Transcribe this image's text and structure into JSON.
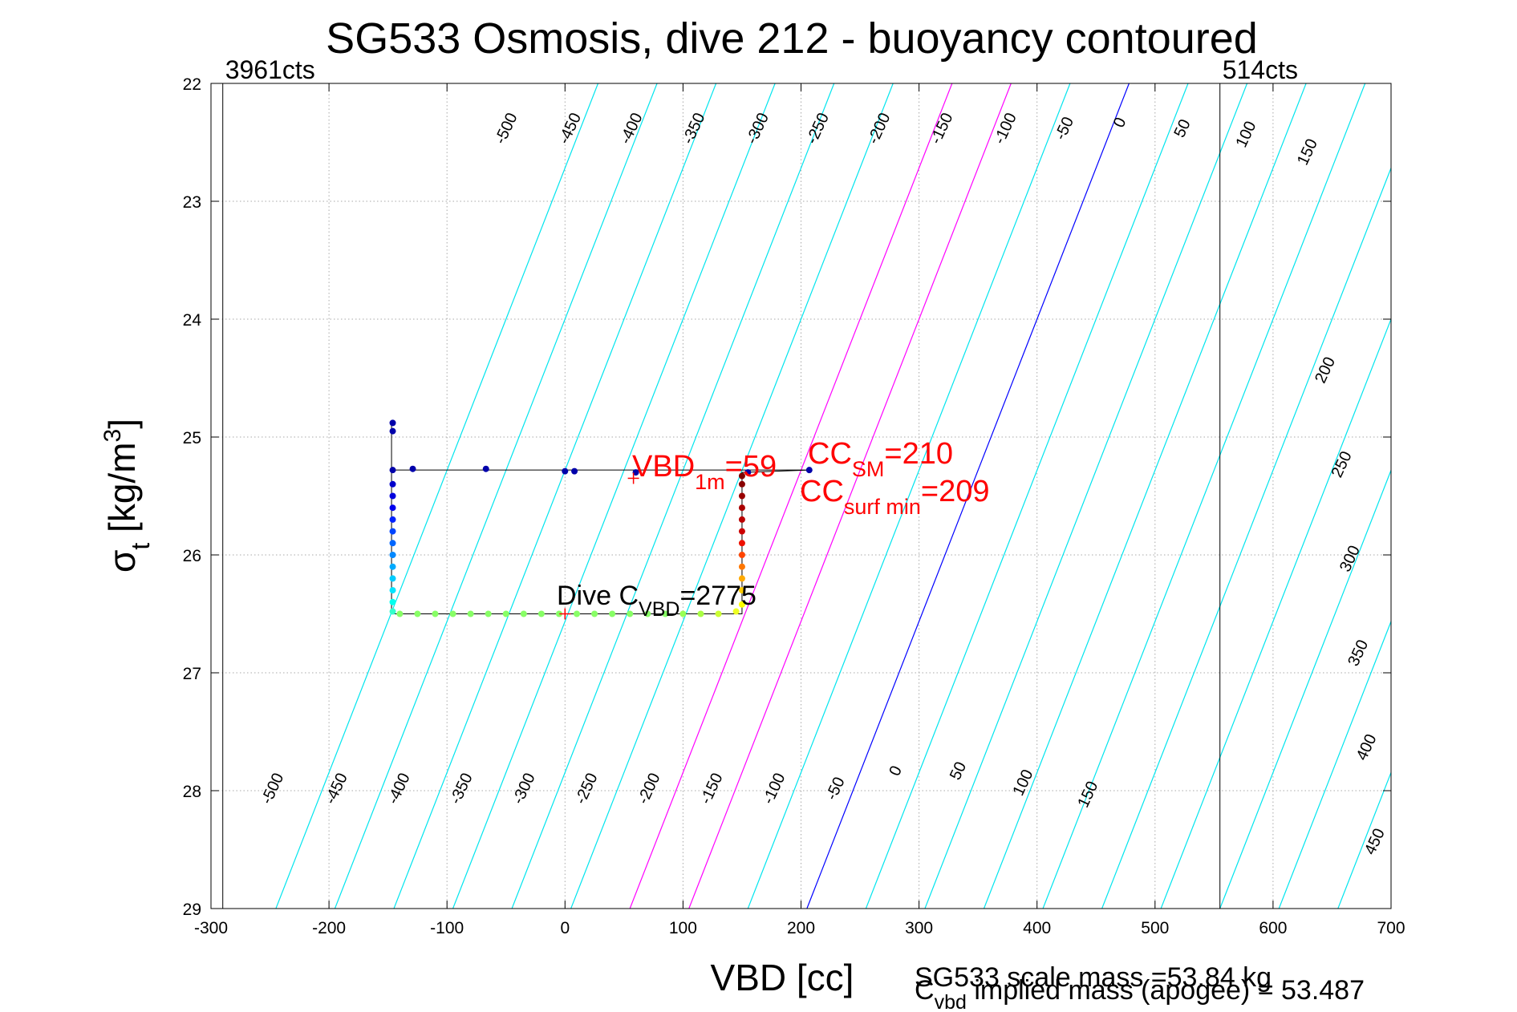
{
  "chart_data": {
    "type": "line",
    "title": "SG533 Osmosis, dive 212 - buoyancy contoured",
    "xlabel": "VBD [cc]",
    "ylabel": {
      "main": "σ",
      "sub": "t",
      "units_pre": " [kg/m",
      "units_sup": "3",
      "units_post": "]"
    },
    "xlim": [
      -300,
      700
    ],
    "ylim": [
      22,
      29
    ],
    "y_reversed": true,
    "x_ticks": [
      -300,
      -200,
      -100,
      0,
      100,
      200,
      300,
      400,
      500,
      600,
      700
    ],
    "y_ticks": [
      22,
      23,
      24,
      25,
      26,
      27,
      28,
      29
    ],
    "x_tick_labels": [
      "-300",
      "-200",
      "-100",
      "0",
      "100",
      "200",
      "300",
      "400",
      "500",
      "600",
      "700"
    ],
    "y_tick_labels": [
      "22",
      "23",
      "24",
      "25",
      "26",
      "27",
      "28",
      "29"
    ],
    "grid": true,
    "vbd_limits": [
      {
        "x": -290,
        "label": "3961cts"
      },
      {
        "x": 555,
        "label": "514cts"
      }
    ],
    "contour_colors": {
      "default": "#00e5ee",
      "zero": "#0000ff",
      "highlight": "#ff00ff"
    },
    "contour_levels": [
      -500,
      -450,
      -400,
      -350,
      -300,
      -250,
      -200,
      -150,
      -100,
      -50,
      0,
      50,
      100,
      150,
      200,
      250,
      300,
      350,
      400,
      450
    ],
    "contour_labels_top": [
      {
        "text": "-500",
        "x": -46,
        "y": 22.4
      },
      {
        "text": "-450",
        "x": 8,
        "y": 22.4
      },
      {
        "text": "-400",
        "x": 60,
        "y": 22.4
      },
      {
        "text": "-350",
        "x": 113,
        "y": 22.4
      },
      {
        "text": "-300",
        "x": 167,
        "y": 22.4
      },
      {
        "text": "-250",
        "x": 218,
        "y": 22.4
      },
      {
        "text": "-200",
        "x": 270,
        "y": 22.4
      },
      {
        "text": "-150",
        "x": 323,
        "y": 22.4
      },
      {
        "text": "-100",
        "x": 377,
        "y": 22.4
      },
      {
        "text": "-50",
        "x": 427,
        "y": 22.4
      },
      {
        "text": "0",
        "x": 474,
        "y": 22.35
      },
      {
        "text": "50",
        "x": 527,
        "y": 22.4
      },
      {
        "text": "100",
        "x": 581,
        "y": 22.45
      },
      {
        "text": "150",
        "x": 633,
        "y": 22.6
      },
      {
        "text": "200",
        "x": 648,
        "y": 24.45
      },
      {
        "text": "250",
        "x": 662,
        "y": 25.25
      },
      {
        "text": "300",
        "x": 669,
        "y": 26.05
      },
      {
        "text": "350",
        "x": 676,
        "y": 26.85
      },
      {
        "text": "400",
        "x": 683,
        "y": 27.65
      },
      {
        "text": "450",
        "x": 690,
        "y": 28.45
      }
    ],
    "contour_labels_bottom": [
      {
        "text": "-500",
        "x": -244,
        "y": 28.0
      },
      {
        "text": "-450",
        "x": -190,
        "y": 28.0
      },
      {
        "text": "-400",
        "x": -137,
        "y": 28.0
      },
      {
        "text": "-350",
        "x": -84,
        "y": 28.0
      },
      {
        "text": "-300",
        "x": -31,
        "y": 28.0
      },
      {
        "text": "-250",
        "x": 22,
        "y": 28.0
      },
      {
        "text": "-200",
        "x": 75,
        "y": 28.0
      },
      {
        "text": "-150",
        "x": 128,
        "y": 28.0
      },
      {
        "text": "-100",
        "x": 181,
        "y": 28.0
      },
      {
        "text": "-50",
        "x": 233,
        "y": 28.0
      },
      {
        "text": "0",
        "x": 284,
        "y": 27.85
      },
      {
        "text": "50",
        "x": 337,
        "y": 27.85
      },
      {
        "text": "100",
        "x": 392,
        "y": 27.95
      },
      {
        "text": "150",
        "x": 447,
        "y": 28.05
      }
    ],
    "series": [
      {
        "kind": "dive_path",
        "color": "#000000",
        "x": [
          -147,
          -147,
          -147,
          -147,
          0,
          150,
          150,
          150,
          208,
          -145,
          -147
        ],
        "y": [
          24.9,
          26.5,
          26.5,
          26.5,
          26.5,
          26.5,
          26.3,
          25.3,
          25.28,
          25.28,
          25.28
        ]
      },
      {
        "kind": "points",
        "points": [
          {
            "x": -146,
            "y": 24.88,
            "c": "#0000aa"
          },
          {
            "x": -146,
            "y": 24.95,
            "c": "#0000aa"
          },
          {
            "x": -146,
            "y": 25.28,
            "c": "#0000aa"
          },
          {
            "x": -129,
            "y": 25.27,
            "c": "#0000aa"
          },
          {
            "x": -67,
            "y": 25.27,
            "c": "#0000aa"
          },
          {
            "x": 0,
            "y": 25.29,
            "c": "#0000aa"
          },
          {
            "x": 8,
            "y": 25.29,
            "c": "#0000aa"
          },
          {
            "x": 60,
            "y": 25.3,
            "c": "#0000aa"
          },
          {
            "x": 155,
            "y": 25.3,
            "c": "#0000aa"
          },
          {
            "x": 207,
            "y": 25.28,
            "c": "#0000aa"
          },
          {
            "x": -146,
            "y": 25.4,
            "c": "#0000cc"
          },
          {
            "x": -146,
            "y": 25.5,
            "c": "#0000dd"
          },
          {
            "x": -146,
            "y": 25.6,
            "c": "#0000ee"
          },
          {
            "x": -146,
            "y": 25.7,
            "c": "#0022ff"
          },
          {
            "x": -146,
            "y": 25.8,
            "c": "#0044ff"
          },
          {
            "x": -146,
            "y": 25.9,
            "c": "#0066ff"
          },
          {
            "x": -146,
            "y": 26.0,
            "c": "#0088ff"
          },
          {
            "x": -146,
            "y": 26.1,
            "c": "#00aaff"
          },
          {
            "x": -146,
            "y": 26.2,
            "c": "#00ccff"
          },
          {
            "x": -146,
            "y": 26.3,
            "c": "#00e5ff"
          },
          {
            "x": -146,
            "y": 26.4,
            "c": "#00ffee"
          },
          {
            "x": -146,
            "y": 26.48,
            "c": "#33ffcc"
          },
          {
            "x": -140,
            "y": 26.5,
            "c": "#88ff66"
          },
          {
            "x": -125,
            "y": 26.5,
            "c": "#88ff66"
          },
          {
            "x": -110,
            "y": 26.5,
            "c": "#88ff66"
          },
          {
            "x": -95,
            "y": 26.5,
            "c": "#88ff66"
          },
          {
            "x": -80,
            "y": 26.5,
            "c": "#88ff66"
          },
          {
            "x": -65,
            "y": 26.5,
            "c": "#88ff66"
          },
          {
            "x": -50,
            "y": 26.5,
            "c": "#88ff66"
          },
          {
            "x": -35,
            "y": 26.5,
            "c": "#88ff66"
          },
          {
            "x": -20,
            "y": 26.5,
            "c": "#88ff66"
          },
          {
            "x": -5,
            "y": 26.5,
            "c": "#88ff66"
          },
          {
            "x": 10,
            "y": 26.5,
            "c": "#88ff66"
          },
          {
            "x": 25,
            "y": 26.5,
            "c": "#88ff66"
          },
          {
            "x": 40,
            "y": 26.5,
            "c": "#88ff66"
          },
          {
            "x": 55,
            "y": 26.5,
            "c": "#88ff66"
          },
          {
            "x": 70,
            "y": 26.5,
            "c": "#88ff66"
          },
          {
            "x": 85,
            "y": 26.5,
            "c": "#88ff66"
          },
          {
            "x": 100,
            "y": 26.5,
            "c": "#99ff55"
          },
          {
            "x": 115,
            "y": 26.5,
            "c": "#aaff44"
          },
          {
            "x": 130,
            "y": 26.5,
            "c": "#ccff33"
          },
          {
            "x": 145,
            "y": 26.48,
            "c": "#eeff22"
          },
          {
            "x": 150,
            "y": 26.42,
            "c": "#ffff00"
          },
          {
            "x": 150,
            "y": 26.3,
            "c": "#ffcc00"
          },
          {
            "x": 150,
            "y": 26.2,
            "c": "#ffaa00"
          },
          {
            "x": 150,
            "y": 26.1,
            "c": "#ff7700"
          },
          {
            "x": 150,
            "y": 26.0,
            "c": "#ff4400"
          },
          {
            "x": 150,
            "y": 25.9,
            "c": "#ee1100"
          },
          {
            "x": 150,
            "y": 25.8,
            "c": "#cc0000"
          },
          {
            "x": 150,
            "y": 25.7,
            "c": "#bb0000"
          },
          {
            "x": 150,
            "y": 25.6,
            "c": "#aa0000"
          },
          {
            "x": 150,
            "y": 25.5,
            "c": "#990000"
          },
          {
            "x": 150,
            "y": 25.4,
            "c": "#880000"
          },
          {
            "x": 150,
            "y": 25.33,
            "c": "#800000"
          }
        ]
      }
    ],
    "markers": [
      {
        "x": 58,
        "y": 25.35,
        "color": "#ff0000"
      },
      {
        "x": 0,
        "y": 26.5,
        "color": "#ff0000"
      }
    ],
    "annotations": {
      "vbd1m": {
        "prefix": "VBD",
        "sub": "1m",
        "suffix": "=59",
        "color": "#ff0000"
      },
      "ccsm": {
        "prefix": "CC",
        "sub": "SM",
        "suffix": "=210",
        "color": "#ff0000"
      },
      "ccsurf": {
        "prefix": "CC",
        "sub": "surf min",
        "suffix": "=209",
        "color": "#ff0000"
      },
      "divec": {
        "prefix": "Dive C",
        "sub": "VBD",
        "suffix": "=2775",
        "color": "#000000"
      }
    },
    "footer": {
      "scale_mass": "SG533 scale mass =53.84 kg",
      "implied_prefix": "C",
      "implied_sub": "vbd",
      "implied_text": " implied mass (apogee) = 53.487"
    }
  }
}
